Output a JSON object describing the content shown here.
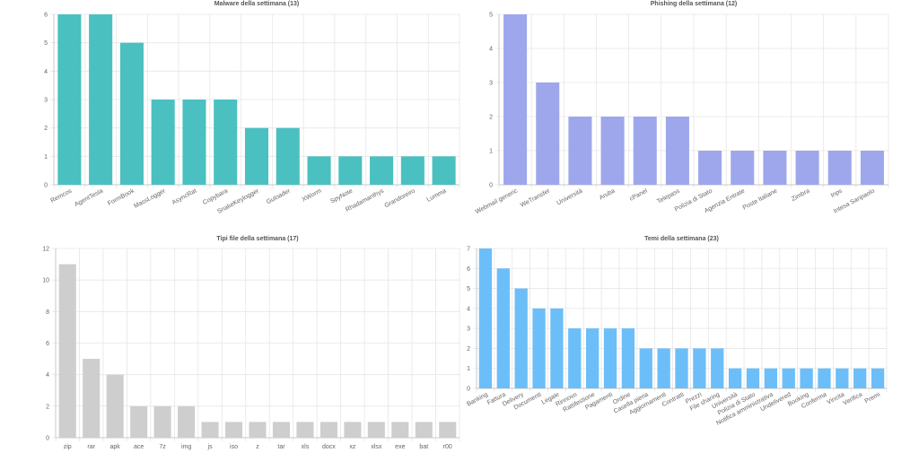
{
  "chart_data": [
    {
      "type": "bar",
      "title": "Malware della settimana (13)",
      "categories": [
        "Remcos",
        "AgentTesla",
        "FormBook",
        "MassLogger",
        "AsyncRat",
        "Copybara",
        "SnakeKeylogger",
        "Guloader",
        "XWorm",
        "SpyNote",
        "Rhadamanthys",
        "Grandoreiro",
        "Lumma"
      ],
      "values": [
        6,
        6,
        5,
        3,
        3,
        3,
        2,
        2,
        1,
        1,
        1,
        1,
        1
      ],
      "ylim": [
        0,
        6
      ],
      "yticks": [
        0,
        1,
        2,
        3,
        4,
        5,
        6
      ],
      "color": "#4bc0c0",
      "xlabel": "",
      "ylabel": "",
      "grid": true,
      "legend": "none"
    },
    {
      "type": "bar",
      "title": "Phishing della settimana (12)",
      "categories": [
        "Webmail generic",
        "WeTransfer",
        "Università",
        "Aruba",
        "cPanel",
        "Telepass",
        "Polizia di Stato",
        "Agenzia Entrate",
        "Poste Italiane",
        "Zimbra",
        "Inps",
        "Intesa Sanpaolo"
      ],
      "values": [
        5,
        3,
        2,
        2,
        2,
        2,
        1,
        1,
        1,
        1,
        1,
        1
      ],
      "ylim": [
        0,
        5
      ],
      "yticks": [
        0,
        1,
        2,
        3,
        4,
        5
      ],
      "color": "#9ea7ec",
      "xlabel": "",
      "ylabel": "",
      "grid": true,
      "legend": "none"
    },
    {
      "type": "bar",
      "title": "Tipi file della settimana (17)",
      "categories": [
        "zip",
        "rar",
        "apk",
        "ace",
        "7z",
        "img",
        "js",
        "iso",
        "z",
        "tar",
        "xls",
        "docx",
        "xz",
        "xlsx",
        "exe",
        "bat",
        "r00"
      ],
      "values": [
        11,
        5,
        4,
        2,
        2,
        2,
        1,
        1,
        1,
        1,
        1,
        1,
        1,
        1,
        1,
        1,
        1
      ],
      "ylim": [
        0,
        12
      ],
      "yticks": [
        0,
        2,
        4,
        6,
        8,
        10,
        12
      ],
      "color": "#cecece",
      "xlabel": "",
      "ylabel": "",
      "grid": true,
      "legend": "none"
    },
    {
      "type": "bar",
      "title": "Temi della settimana (23)",
      "categories": [
        "Banking",
        "Fattura",
        "Delivery",
        "Documenti",
        "Legale",
        "Rinnovo",
        "Rattifestione",
        "Pagamenti",
        "Ordine",
        "Casella piena",
        "Aggiornamenti",
        "Contratti",
        "Prezzi",
        "File sharing",
        "Università",
        "Polizia di Stato",
        "Notifica amministrativa",
        "Undelivered",
        "Booking",
        "Conferma",
        "Vincita",
        "Verifica",
        "Premi"
      ],
      "values": [
        7,
        6,
        5,
        4,
        4,
        3,
        3,
        3,
        3,
        2,
        2,
        2,
        2,
        2,
        1,
        1,
        1,
        1,
        1,
        1,
        1,
        1,
        1
      ],
      "ylim": [
        0,
        7
      ],
      "yticks": [
        0,
        1,
        2,
        3,
        4,
        5,
        6,
        7
      ],
      "color": "#6cbef9",
      "xlabel": "",
      "ylabel": "",
      "grid": true,
      "legend": "none"
    }
  ]
}
